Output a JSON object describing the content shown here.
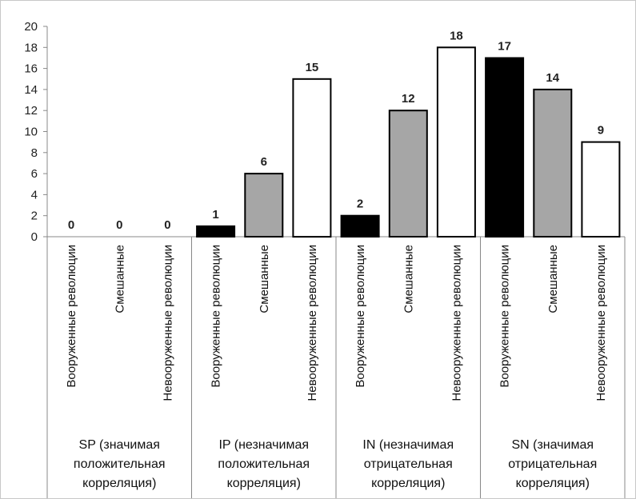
{
  "chart_data": {
    "type": "bar",
    "title": "",
    "xlabel": "",
    "ylabel": "",
    "ylim": [
      0,
      20
    ],
    "yticks": [
      0,
      2,
      4,
      6,
      8,
      10,
      12,
      14,
      16,
      18,
      20
    ],
    "grid": false,
    "legend": "none",
    "groups": [
      {
        "label_lines": [
          "SP (значимая",
          "положительная",
          "корреляция)"
        ],
        "bars": [
          {
            "category": "Вооруженные революции",
            "value": 0,
            "color": "#000000"
          },
          {
            "category": "Смешанные",
            "value": 0,
            "color": "#a6a6a6"
          },
          {
            "category": "Невооруженные революции",
            "value": 0,
            "color": "#ffffff"
          }
        ]
      },
      {
        "label_lines": [
          "IP (незначимая",
          "положительная",
          "корреляция)"
        ],
        "bars": [
          {
            "category": "Вооруженные революции",
            "value": 1,
            "color": "#000000"
          },
          {
            "category": "Смешанные",
            "value": 6,
            "color": "#a6a6a6"
          },
          {
            "category": "Невооруженные революции",
            "value": 15,
            "color": "#ffffff"
          }
        ]
      },
      {
        "label_lines": [
          "IN (незначимая",
          "отрицательная",
          "корреляция)"
        ],
        "bars": [
          {
            "category": "Вооруженные революции",
            "value": 2,
            "color": "#000000"
          },
          {
            "category": "Смешанные",
            "value": 12,
            "color": "#a6a6a6"
          },
          {
            "category": "Невооруженные революции",
            "value": 18,
            "color": "#ffffff"
          }
        ]
      },
      {
        "label_lines": [
          "SN (значимая",
          "отрицательная",
          "корреляция)"
        ],
        "bars": [
          {
            "category": "Вооруженные революции",
            "value": 17,
            "color": "#000000"
          },
          {
            "category": "Смешанные",
            "value": 14,
            "color": "#a6a6a6"
          },
          {
            "category": "Невооруженные революции",
            "value": 9,
            "color": "#ffffff"
          }
        ]
      }
    ]
  }
}
